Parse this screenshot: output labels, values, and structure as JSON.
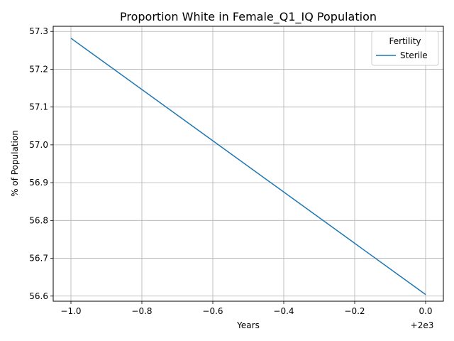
{
  "chart_data": {
    "type": "line",
    "title": "Proportion White in Female_Q1_IQ Population",
    "xlabel": "Years",
    "ylabel": "% of Population",
    "x_offset_label": "+2e3",
    "xlim": [
      -1.05,
      0.05
    ],
    "ylim": [
      56.5864,
      57.3136
    ],
    "x_ticks": [
      -1.0,
      -0.8,
      -0.6,
      -0.4,
      -0.2,
      0.0
    ],
    "x_tick_labels": [
      "−1.0",
      "−0.8",
      "−0.6",
      "−0.4",
      "−0.2",
      "0.0"
    ],
    "y_ticks": [
      56.6,
      56.7,
      56.8,
      56.9,
      57.0,
      57.1,
      57.2,
      57.3
    ],
    "y_tick_labels": [
      "56.6",
      "56.7",
      "56.8",
      "56.9",
      "57.0",
      "57.1",
      "57.2",
      "57.3"
    ],
    "grid": true,
    "legend": {
      "title": "Fertility",
      "placement": "top-right"
    },
    "series": [
      {
        "name": "Sterile",
        "color": "#1f77b4",
        "x": [
          -1.0,
          0.0
        ],
        "y": [
          57.282,
          56.604
        ]
      }
    ]
  }
}
